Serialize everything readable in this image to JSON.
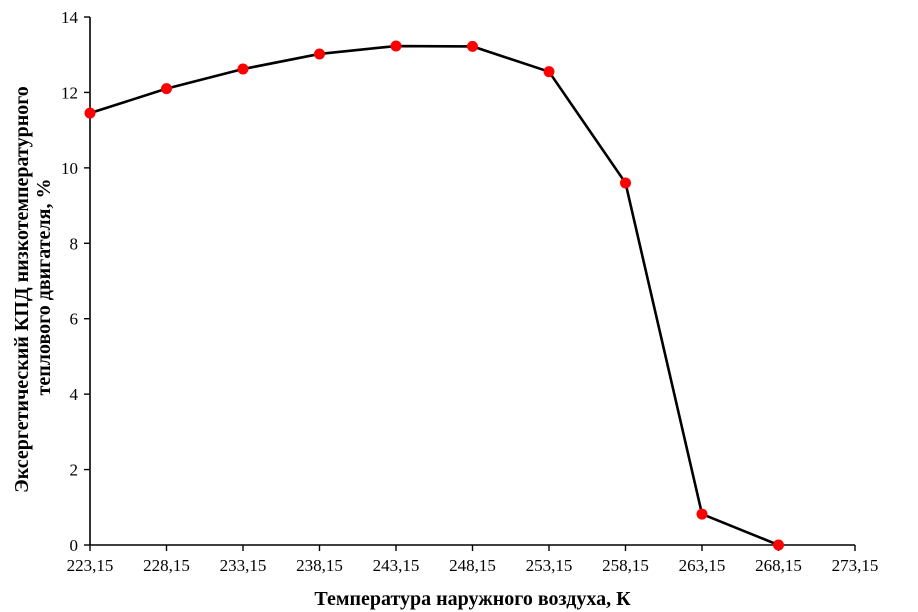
{
  "chart_data": {
    "type": "line",
    "title": "",
    "xlabel": "Температура наружного воздуха, К",
    "ylabel_lines": [
      "Эксергетический КПД низкотемпературного",
      "теплового двигателя, %"
    ],
    "x_tick_labels": [
      "223,15",
      "228,15",
      "233,15",
      "238,15",
      "243,15",
      "248,15",
      "253,15",
      "258,15",
      "263,15",
      "268,15",
      "273,15"
    ],
    "x_ticks": [
      223.15,
      228.15,
      233.15,
      238.15,
      243.15,
      248.15,
      253.15,
      258.15,
      263.15,
      268.15,
      273.15
    ],
    "y_ticks": [
      0,
      2,
      4,
      6,
      8,
      10,
      12,
      14
    ],
    "xlim": [
      223.15,
      273.15
    ],
    "ylim": [
      0,
      14
    ],
    "grid": false,
    "series": [
      {
        "x": [
          223.15,
          228.15,
          233.15,
          238.15,
          243.15,
          248.15,
          253.15,
          258.15,
          263.15,
          268.15
        ],
        "values": [
          11.45,
          12.1,
          12.62,
          13.02,
          13.23,
          13.22,
          12.55,
          9.6,
          0.82,
          0.0
        ]
      }
    ],
    "colors": {
      "line": "#000000",
      "marker": "#ff0000"
    }
  }
}
